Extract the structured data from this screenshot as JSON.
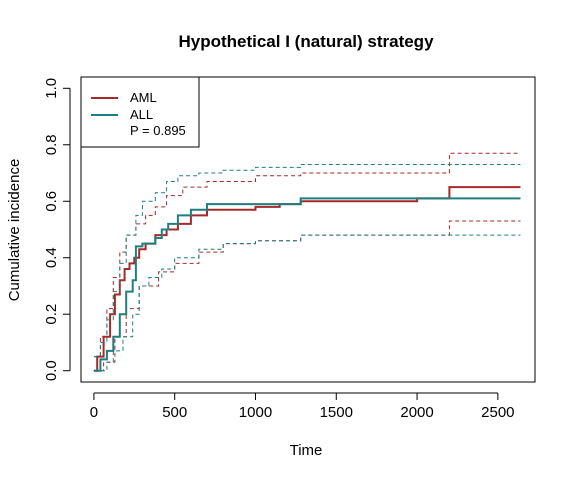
{
  "chart_data": {
    "type": "line",
    "title": "Hypothetical I (natural) strategy",
    "xlabel": "Time",
    "ylabel": "Cumulative incidence",
    "xlim": [
      -80,
      2730
    ],
    "ylim": [
      -0.04,
      1.04
    ],
    "x_ticks": [
      0,
      500,
      1000,
      1500,
      2000,
      2500
    ],
    "y_ticks": [
      0.0,
      0.2,
      0.4,
      0.6,
      0.8,
      1.0
    ],
    "x_tick_labels": [
      "0",
      "500",
      "1000",
      "1500",
      "2000",
      "2500"
    ],
    "y_tick_labels": [
      "0.0",
      "0.2",
      "0.4",
      "0.6",
      "0.8",
      "1.0"
    ],
    "legend": {
      "position": "top-left",
      "p_value": "P = 0.895"
    },
    "grid": false,
    "series": [
      {
        "name": "AML",
        "color": "#a52a2a",
        "x": [
          0,
          20,
          60,
          100,
          130,
          160,
          190,
          220,
          250,
          280,
          320,
          380,
          450,
          520,
          600,
          700,
          800,
          1000,
          1150,
          1280,
          1500,
          2000,
          2200,
          2640
        ],
        "y": [
          0.0,
          0.05,
          0.12,
          0.2,
          0.27,
          0.32,
          0.36,
          0.38,
          0.4,
          0.43,
          0.45,
          0.48,
          0.5,
          0.52,
          0.55,
          0.57,
          0.57,
          0.58,
          0.59,
          0.6,
          0.6,
          0.61,
          0.65,
          0.65
        ],
        "lower_x": [
          0,
          60,
          130,
          200,
          280,
          400,
          500,
          650,
          800,
          1000,
          1280,
          1500,
          2200,
          2640
        ],
        "lower_y": [
          0.0,
          0.03,
          0.12,
          0.22,
          0.3,
          0.35,
          0.38,
          0.42,
          0.45,
          0.46,
          0.48,
          0.48,
          0.53,
          0.53
        ],
        "upper_x": [
          0,
          40,
          80,
          120,
          160,
          200,
          260,
          320,
          380,
          450,
          550,
          700,
          1000,
          1280,
          1500,
          2200,
          2640
        ],
        "upper_y": [
          0.05,
          0.12,
          0.22,
          0.33,
          0.42,
          0.48,
          0.52,
          0.55,
          0.58,
          0.62,
          0.65,
          0.67,
          0.69,
          0.7,
          0.7,
          0.77,
          0.77
        ]
      },
      {
        "name": "ALL",
        "color": "#1e7f7f",
        "x": [
          0,
          40,
          80,
          120,
          160,
          200,
          240,
          260,
          300,
          380,
          420,
          460,
          520,
          600,
          700,
          800,
          1000,
          1280,
          1500,
          2000,
          2640
        ],
        "y": [
          0.0,
          0.04,
          0.07,
          0.12,
          0.2,
          0.28,
          0.32,
          0.44,
          0.45,
          0.47,
          0.5,
          0.52,
          0.55,
          0.57,
          0.59,
          0.59,
          0.59,
          0.61,
          0.61,
          0.61,
          0.61
        ],
        "lower_x": [
          0,
          80,
          120,
          180,
          240,
          280,
          340,
          420,
          500,
          650,
          800,
          1000,
          1280,
          2000,
          2640
        ],
        "lower_y": [
          0.0,
          0.03,
          0.07,
          0.12,
          0.2,
          0.3,
          0.33,
          0.36,
          0.4,
          0.43,
          0.45,
          0.46,
          0.48,
          0.48,
          0.48
        ],
        "upper_x": [
          0,
          40,
          80,
          120,
          160,
          200,
          260,
          300,
          380,
          450,
          520,
          650,
          800,
          1000,
          1280,
          2000,
          2640
        ],
        "upper_y": [
          0.05,
          0.1,
          0.18,
          0.28,
          0.38,
          0.48,
          0.55,
          0.6,
          0.63,
          0.67,
          0.69,
          0.7,
          0.71,
          0.72,
          0.73,
          0.73,
          0.73
        ]
      }
    ]
  }
}
